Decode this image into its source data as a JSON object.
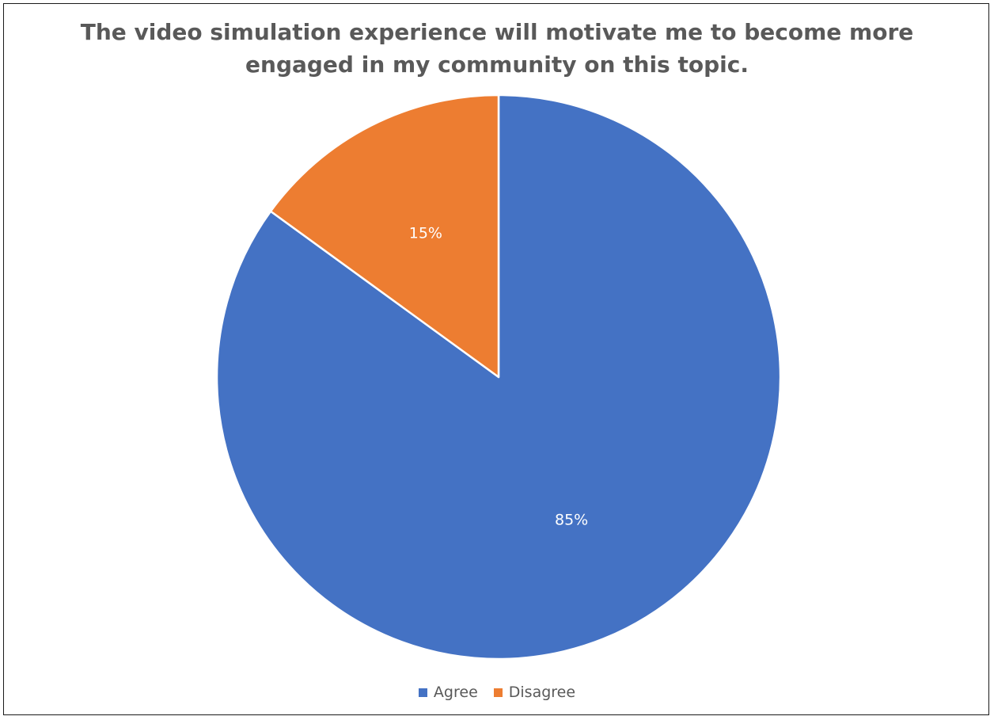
{
  "chart_data": {
    "type": "pie",
    "title_lines": [
      "The video simulation experience will motivate me to become more",
      "engaged in my community on this topic."
    ],
    "slices": [
      {
        "label": "Agree",
        "value": 85,
        "display": "85%",
        "color": "#4472C4"
      },
      {
        "label": "Disagree",
        "value": 15,
        "display": "15%",
        "color": "#ED7D31"
      }
    ],
    "legend_position": "bottom"
  }
}
